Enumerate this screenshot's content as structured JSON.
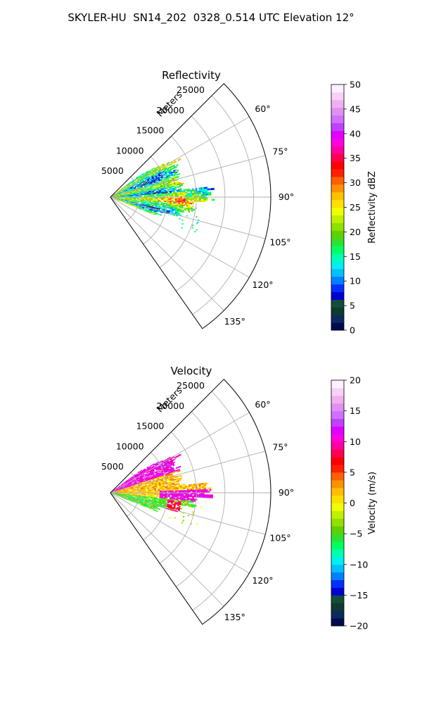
{
  "figure": {
    "title": "SKYLER-HU  SN14_202  0328_0.514 UTC Elevation 12°"
  },
  "chart_data": [
    {
      "type": "heatmap",
      "subtype": "polar-sector-radar",
      "title": "Reflectivity",
      "radial_axis_label": "Meters",
      "range_ticks": [
        5000,
        10000,
        15000,
        20000,
        25000
      ],
      "range_tick_labels": [
        "5000",
        "10000",
        "15000",
        "20000",
        "25000"
      ],
      "rmax": 28000,
      "azimuth_range_deg": [
        45,
        145
      ],
      "azimuth_ticks": [
        60,
        75,
        90,
        105,
        120,
        135
      ],
      "azimuth_tick_labels": [
        "60°",
        "75°",
        "90°",
        "105°",
        "120°",
        "135°"
      ],
      "grid": true,
      "colorbar": {
        "label": "Reflectivity dBZ",
        "min": 0,
        "max": 50,
        "ticks": [
          0,
          5,
          10,
          15,
          20,
          25,
          30,
          35,
          40,
          45,
          50
        ],
        "tick_labels": [
          "0",
          "5",
          "10",
          "15",
          "20",
          "25",
          "30",
          "35",
          "40",
          "45",
          "50"
        ],
        "colors": [
          "#000a50",
          "#0a2a60",
          "#0d3b2e",
          "#144d3c",
          "#0000d0",
          "#0030ff",
          "#0080ff",
          "#00c0ff",
          "#00f0f0",
          "#00ffb0",
          "#00ff60",
          "#30e030",
          "#60d000",
          "#90e000",
          "#c0f000",
          "#f0ff00",
          "#ffe000",
          "#ffc000",
          "#ff9000",
          "#ff6000",
          "#ff2000",
          "#ff0000",
          "#ff0050",
          "#ff00a0",
          "#ff00e0",
          "#e000ff",
          "#c040ff",
          "#d070ff",
          "#e090f0",
          "#f0b0f0",
          "#f8d0f8",
          "#fff0ff"
        ]
      },
      "echo_region": {
        "az_start_deg": 53,
        "az_end_deg": 112,
        "max_range_m": 18000,
        "value_range": [
          8,
          35
        ],
        "dominant_values": [
          18,
          22,
          26
        ],
        "notes": "scattered returns, strongest echo bands near 88-95° and 100°"
      }
    },
    {
      "type": "heatmap",
      "subtype": "polar-sector-radar",
      "title": "Velocity",
      "radial_axis_label": "Meters",
      "range_ticks": [
        5000,
        10000,
        15000,
        20000,
        25000
      ],
      "range_tick_labels": [
        "5000",
        "10000",
        "15000",
        "20000",
        "25000"
      ],
      "rmax": 28000,
      "azimuth_range_deg": [
        45,
        145
      ],
      "azimuth_ticks": [
        60,
        75,
        90,
        105,
        120,
        135
      ],
      "azimuth_tick_labels": [
        "60°",
        "75°",
        "90°",
        "105°",
        "120°",
        "135°"
      ],
      "grid": true,
      "colorbar": {
        "label": "Velocity (m/s)",
        "min": -20,
        "max": 20,
        "ticks": [
          -20,
          -15,
          -10,
          -5,
          0,
          5,
          10,
          15,
          20
        ],
        "tick_labels": [
          "−20",
          "−15",
          "−10",
          "−5",
          "0",
          "5",
          "10",
          "15",
          "20"
        ],
        "colors": [
          "#000a50",
          "#0a2a60",
          "#0d3b2e",
          "#144d3c",
          "#0000d0",
          "#0030ff",
          "#0080ff",
          "#00c0ff",
          "#00f0f0",
          "#00ffb0",
          "#00ff60",
          "#30e030",
          "#60d000",
          "#90e000",
          "#c0f000",
          "#f0ff00",
          "#ffe000",
          "#ffc000",
          "#ff9000",
          "#ff6000",
          "#ff2000",
          "#ff0000",
          "#ff0050",
          "#ff00a0",
          "#ff00e0",
          "#e000ff",
          "#c040ff",
          "#d070ff",
          "#e090f0",
          "#f0b0f0",
          "#f8d0f8",
          "#fff0ff"
        ]
      },
      "echo_region": {
        "az_start_deg": 53,
        "az_end_deg": 112,
        "max_range_m": 18000,
        "value_range": [
          -8,
          14
        ],
        "notes": "outbound (+10 to +14 m/s) north of 90°, near 0 m/s core, inbound (−5 to −8 m/s) south of 95°"
      }
    }
  ]
}
